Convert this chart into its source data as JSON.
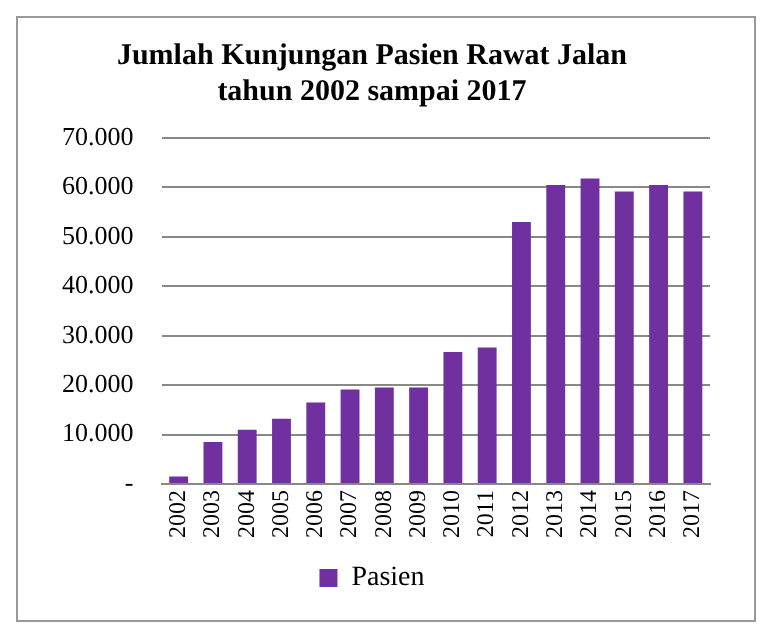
{
  "chart_data": {
    "type": "bar",
    "title": [
      "Jumlah Kunjungan Pasien Rawat Jalan",
      "tahun 2002 sampai 2017"
    ],
    "categories": [
      "2002",
      "2003",
      "2004",
      "2005",
      "2006",
      "2007",
      "2008",
      "2009",
      "2010",
      "2011",
      "2012",
      "2013",
      "2014",
      "2015",
      "2016",
      "2017"
    ],
    "series": [
      {
        "name": "Pasien",
        "color": "#7030a0",
        "values": [
          1500,
          8500,
          11000,
          13200,
          16500,
          19100,
          19500,
          19500,
          26700,
          27600,
          53000,
          60500,
          61800,
          59200,
          60500,
          59200
        ]
      }
    ],
    "ylim": [
      0,
      70000
    ],
    "yticks": [
      {
        "value": 0,
        "label": "-"
      },
      {
        "value": 10000,
        "label": "10.000"
      },
      {
        "value": 20000,
        "label": "20.000"
      },
      {
        "value": 30000,
        "label": "30.000"
      },
      {
        "value": 40000,
        "label": "40.000"
      },
      {
        "value": 50000,
        "label": "50.000"
      },
      {
        "value": 60000,
        "label": "60.000"
      },
      {
        "value": 70000,
        "label": "70.000"
      }
    ],
    "grid": "y",
    "legend": "bottom"
  }
}
